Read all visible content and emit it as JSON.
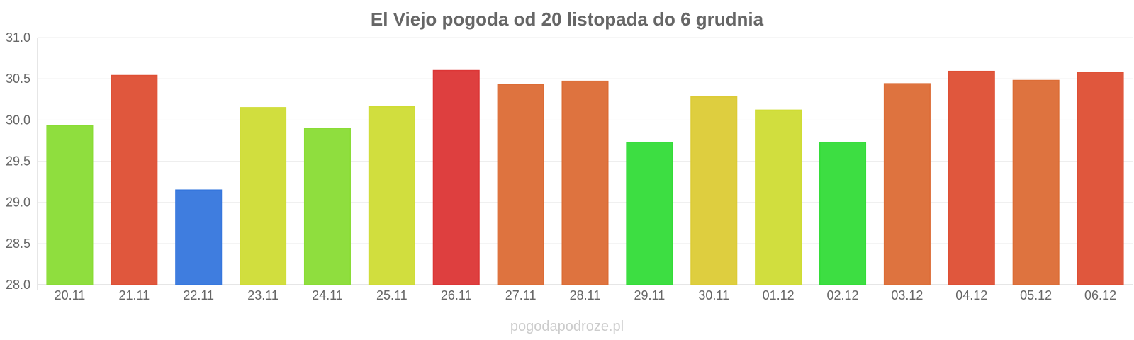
{
  "chart_data": {
    "type": "bar",
    "title": "El Viejo pogoda od 20 listopada do 6 grudnia",
    "categories": [
      "20.11",
      "21.11",
      "22.11",
      "23.11",
      "24.11",
      "25.11",
      "26.11",
      "27.11",
      "28.11",
      "29.11",
      "30.11",
      "01.12",
      "02.12",
      "03.12",
      "04.12",
      "05.12",
      "06.12"
    ],
    "values": [
      29.93,
      30.54,
      29.15,
      30.15,
      29.9,
      30.16,
      30.6,
      30.43,
      30.47,
      29.73,
      30.28,
      30.12,
      29.73,
      30.44,
      30.59,
      30.48,
      30.58
    ],
    "colors": [
      "#89dc34",
      "#de4e33",
      "#3576dd",
      "#cfdc34",
      "#89dc34",
      "#cfdc34",
      "#dc3535",
      "#dc6c35",
      "#dc6c35",
      "#33dc38",
      "#dccb35",
      "#cfdc34",
      "#33dc38",
      "#dc6c35",
      "#de4e33",
      "#dc6c35",
      "#de4e33"
    ],
    "yticks": [
      "28.0",
      "28.5",
      "29.0",
      "29.5",
      "30.0",
      "30.5",
      "31.0"
    ],
    "ylim": [
      28.0,
      31.0
    ],
    "grid": true,
    "xlabel": "",
    "ylabel": ""
  },
  "watermark": "pogodapodroze.pl"
}
